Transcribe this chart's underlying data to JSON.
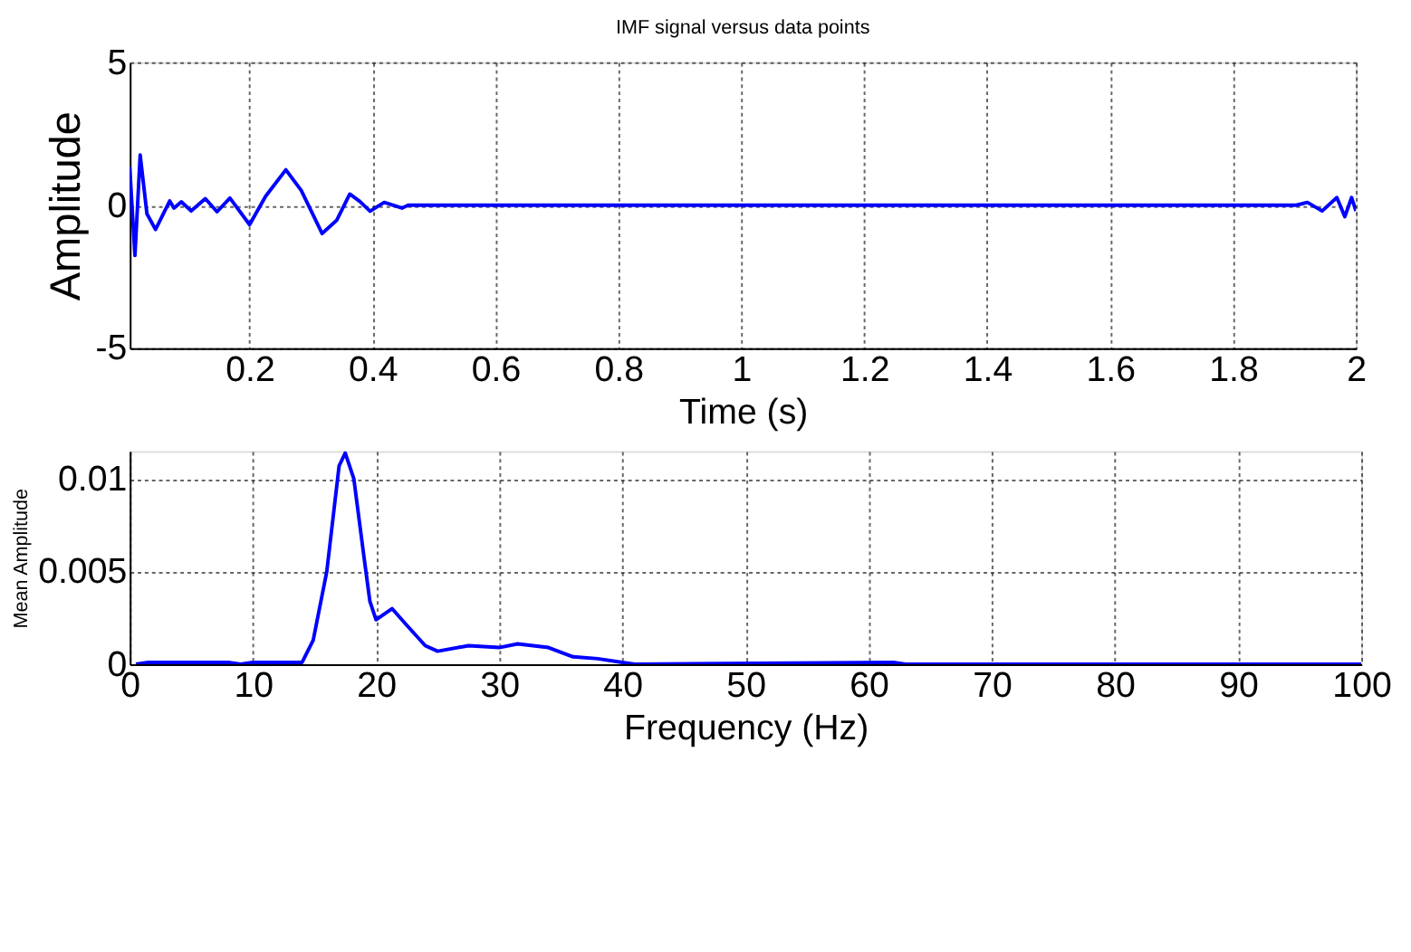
{
  "chart_data": [
    {
      "type": "line",
      "title": "IMF signal versus data points",
      "xlabel": "Time (s)",
      "ylabel": "Amplitude",
      "xlim": [
        0.005,
        2
      ],
      "ylim": [
        -5,
        5
      ],
      "xticks": [
        0.2,
        0.4,
        0.6,
        0.8,
        1,
        1.2,
        1.4,
        1.6,
        1.8,
        2
      ],
      "yticks": [
        -5,
        0,
        5
      ],
      "grid": true,
      "line_style": "solid",
      "marker": "none",
      "series": [
        {
          "color": "#0000ff",
          "x": [
            0.005,
            0.01,
            0.0135,
            0.022,
            0.033,
            0.047,
            0.07,
            0.077,
            0.089,
            0.105,
            0.128,
            0.147,
            0.168,
            0.2,
            0.226,
            0.259,
            0.284,
            0.318,
            0.342,
            0.363,
            0.379,
            0.396,
            0.419,
            0.448,
            0.458,
            1.903,
            1.921,
            1.945,
            1.969,
            1.982,
            1.993,
            2.0
          ],
          "values": [
            1.34,
            -0.5,
            -1.76,
            1.76,
            -0.3,
            -0.85,
            0.15,
            -0.1,
            0.12,
            -0.2,
            0.23,
            -0.23,
            0.25,
            -0.68,
            0.31,
            1.24,
            0.52,
            -0.99,
            -0.52,
            0.39,
            0.14,
            -0.21,
            0.1,
            -0.1,
            0,
            0,
            0.1,
            -0.2,
            0.27,
            -0.4,
            0.27,
            -0.2
          ]
        }
      ]
    },
    {
      "type": "line",
      "xlabel": "Frequency (Hz)",
      "ylabel": "Mean Amplitude",
      "xlim": [
        0,
        100
      ],
      "ylim": [
        0,
        0.0115
      ],
      "xticks": [
        0,
        10,
        20,
        30,
        40,
        50,
        60,
        70,
        80,
        90,
        100
      ],
      "yticks": [
        0,
        0.005,
        0.01
      ],
      "grid": true,
      "line_style": "solid",
      "marker": "none",
      "series": [
        {
          "color": "#0000ff",
          "x": [
            0.5,
            1.5,
            8,
            9,
            10,
            14,
            14.9,
            16,
            17,
            17.5,
            18.2,
            19,
            19.5,
            20,
            21.3,
            22.5,
            24,
            25,
            27.5,
            30,
            31.5,
            34,
            36,
            38,
            40,
            41,
            62,
            63,
            100
          ],
          "values": [
            0,
            0.0001,
            0.0001,
            0,
            0.0001,
            0.0001,
            0.0013,
            0.005,
            0.0107,
            0.0114,
            0.01,
            0.0059,
            0.0034,
            0.0024,
            0.003,
            0.0021,
            0.001,
            0.0007,
            0.001,
            0.0009,
            0.0011,
            0.0009,
            0.0004,
            0.0003,
            0.0001,
            0,
            0.0001,
            0,
            0
          ]
        }
      ]
    }
  ]
}
